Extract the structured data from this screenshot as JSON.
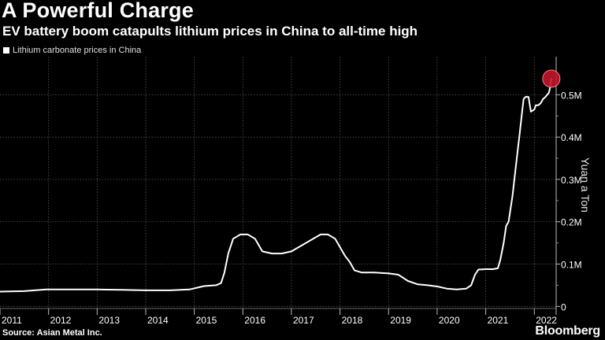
{
  "header": {
    "title": "A Powerful Charge",
    "subtitle": "EV battery boom catapults lithium prices in China to all-time high"
  },
  "footer": {
    "source": "Source: Asian Metal Inc.",
    "brand": "Bloomberg"
  },
  "colors": {
    "background": "#000000",
    "line": "#ffffff",
    "grid": "#555555",
    "highlight": "#c0162a"
  },
  "chart_data": {
    "type": "line",
    "title": "A Powerful Charge",
    "subtitle": "EV battery boom catapults lithium prices in China to all-time high",
    "xlabel": "",
    "ylabel": "Yuan a Ton",
    "legend": [
      "Lithium carbonate prices in China"
    ],
    "legend_position": "top-left",
    "grid": true,
    "xlim": [
      2011.0,
      2022.45
    ],
    "ylim": [
      -5000,
      590000
    ],
    "x_ticks": [
      2011,
      2012,
      2013,
      2014,
      2015,
      2016,
      2017,
      2018,
      2019,
      2020,
      2021,
      2022
    ],
    "x_tick_labels": [
      "2011",
      "2012",
      "2013",
      "2014",
      "2015",
      "2016",
      "2017",
      "2018",
      "2019",
      "2020",
      "2021",
      "2022"
    ],
    "y_ticks": [
      0,
      100000,
      200000,
      300000,
      400000,
      500000
    ],
    "y_tick_labels": [
      "0",
      "0.1M",
      "0.2M",
      "0.3M",
      "0.4M",
      "0.5M"
    ],
    "series": [
      {
        "name": "Lithium carbonate prices in China",
        "x": [
          2011.0,
          2011.5,
          2011.95,
          2012.5,
          2013.0,
          2013.5,
          2014.0,
          2014.5,
          2014.9,
          2015.2,
          2015.45,
          2015.55,
          2015.62,
          2015.7,
          2015.8,
          2015.95,
          2016.1,
          2016.25,
          2016.4,
          2016.6,
          2016.8,
          2017.0,
          2017.15,
          2017.3,
          2017.45,
          2017.6,
          2017.75,
          2017.9,
          2018.0,
          2018.1,
          2018.2,
          2018.3,
          2018.45,
          2018.7,
          2019.0,
          2019.2,
          2019.4,
          2019.6,
          2019.8,
          2020.0,
          2020.2,
          2020.4,
          2020.6,
          2020.7,
          2020.78,
          2020.85,
          2021.0,
          2021.15,
          2021.25,
          2021.3,
          2021.37,
          2021.42,
          2021.47,
          2021.55,
          2021.62,
          2021.7,
          2021.75,
          2021.78,
          2021.82,
          2021.88,
          2021.93,
          2022.0,
          2022.03,
          2022.08,
          2022.13,
          2022.18,
          2022.23,
          2022.3,
          2022.33,
          2022.35
        ],
        "values": [
          35000,
          36000,
          40000,
          40000,
          40000,
          39000,
          38000,
          38000,
          40000,
          48000,
          50000,
          55000,
          80000,
          125000,
          160000,
          170000,
          170000,
          160000,
          130000,
          125000,
          125000,
          130000,
          140000,
          150000,
          160000,
          170000,
          170000,
          160000,
          140000,
          120000,
          105000,
          85000,
          80000,
          80000,
          78000,
          75000,
          60000,
          52000,
          50000,
          47000,
          42000,
          40000,
          42000,
          50000,
          75000,
          87000,
          88000,
          88000,
          90000,
          110000,
          150000,
          190000,
          200000,
          260000,
          330000,
          410000,
          460000,
          490000,
          495000,
          495000,
          460000,
          465000,
          475000,
          475000,
          480000,
          490000,
          495000,
          505000,
          520000,
          538000
        ]
      }
    ],
    "highlight_point": {
      "x": 2022.35,
      "y": 538000
    }
  }
}
